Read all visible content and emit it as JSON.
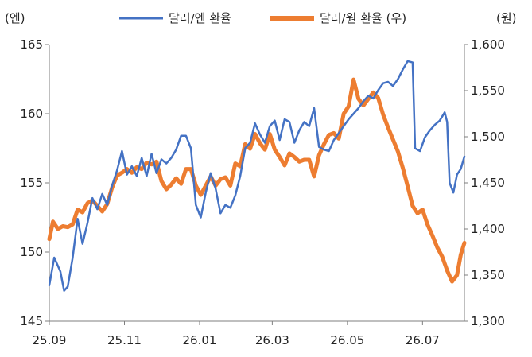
{
  "chart_data": {
    "type": "line",
    "x_ticks": [
      "25.09",
      "25.11",
      "26.01",
      "26.03",
      "26.05",
      "26.07"
    ],
    "left_axis": {
      "unit_label": "(엔)",
      "ylim": [
        145,
        165
      ],
      "ticks": [
        "145",
        "150",
        "155",
        "160",
        "165"
      ]
    },
    "right_axis": {
      "unit_label": "(원)",
      "ylim": [
        1300,
        1600
      ],
      "ticks": [
        "1,300",
        "1,350",
        "1,400",
        "1,450",
        "1,500",
        "1,550",
        "1,600"
      ]
    },
    "legend_position": "top-center",
    "series": [
      {
        "name": "달러/엔 환율",
        "axis": "left",
        "color": "#4472C4",
        "points": [
          [
            "25.09.01",
            147.6
          ],
          [
            "25.09.05",
            149.6
          ],
          [
            "25.09.10",
            148.6
          ],
          [
            "25.09.13",
            147.2
          ],
          [
            "25.09.16",
            147.5
          ],
          [
            "25.09.20",
            149.6
          ],
          [
            "25.09.24",
            152.4
          ],
          [
            "25.09.28",
            150.6
          ],
          [
            "25.10.02",
            152.1
          ],
          [
            "25.10.06",
            153.9
          ],
          [
            "25.10.10",
            153.1
          ],
          [
            "25.10.14",
            154.2
          ],
          [
            "25.10.18",
            153.4
          ],
          [
            "25.10.22",
            154.8
          ],
          [
            "25.10.26",
            155.9
          ],
          [
            "25.10.30",
            157.3
          ],
          [
            "25.11.03",
            155.6
          ],
          [
            "25.11.07",
            156.2
          ],
          [
            "25.11.11",
            155.5
          ],
          [
            "25.11.15",
            156.8
          ],
          [
            "25.11.19",
            155.5
          ],
          [
            "25.11.23",
            157.1
          ],
          [
            "25.11.27",
            155.7
          ],
          [
            "25.12.01",
            156.7
          ],
          [
            "25.12.05",
            156.4
          ],
          [
            "25.12.09",
            156.8
          ],
          [
            "25.12.13",
            157.4
          ],
          [
            "25.12.17",
            158.4
          ],
          [
            "25.12.21",
            158.4
          ],
          [
            "25.12.25",
            157.5
          ],
          [
            "25.12.29",
            153.4
          ],
          [
            "26.01.02",
            152.5
          ],
          [
            "26.01.06",
            154.3
          ],
          [
            "26.01.10",
            155.7
          ],
          [
            "26.01.14",
            154.6
          ],
          [
            "26.01.18",
            152.8
          ],
          [
            "26.01.22",
            153.4
          ],
          [
            "26.01.26",
            153.2
          ],
          [
            "26.01.30",
            154.1
          ],
          [
            "26.02.03",
            155.5
          ],
          [
            "26.02.07",
            157.5
          ],
          [
            "26.02.11",
            157.9
          ],
          [
            "26.02.15",
            159.3
          ],
          [
            "26.02.19",
            158.5
          ],
          [
            "26.02.23",
            157.9
          ],
          [
            "26.02.27",
            159.1
          ],
          [
            "26.03.03",
            159.5
          ],
          [
            "26.03.07",
            158.1
          ],
          [
            "26.03.11",
            159.6
          ],
          [
            "26.03.15",
            159.4
          ],
          [
            "26.03.19",
            157.9
          ],
          [
            "26.03.23",
            158.8
          ],
          [
            "26.03.27",
            159.4
          ],
          [
            "26.03.31",
            159.1
          ],
          [
            "26.04.04",
            160.4
          ],
          [
            "26.04.08",
            157.6
          ],
          [
            "26.04.12",
            157.4
          ],
          [
            "26.04.16",
            157.3
          ],
          [
            "26.04.20",
            158.1
          ],
          [
            "26.04.24",
            158.6
          ],
          [
            "26.04.28",
            159.1
          ],
          [
            "26.05.02",
            159.6
          ],
          [
            "26.05.06",
            160.0
          ],
          [
            "26.05.10",
            160.4
          ],
          [
            "26.05.14",
            160.9
          ],
          [
            "26.05.18",
            161.3
          ],
          [
            "26.05.22",
            161.1
          ],
          [
            "26.05.26",
            161.7
          ],
          [
            "26.05.30",
            162.2
          ],
          [
            "26.06.03",
            162.3
          ],
          [
            "26.06.07",
            162.0
          ],
          [
            "26.06.11",
            162.5
          ],
          [
            "26.06.15",
            163.2
          ],
          [
            "26.06.19",
            163.8
          ],
          [
            "26.06.23",
            163.7
          ],
          [
            "26.06.25",
            157.5
          ],
          [
            "26.06.29",
            157.3
          ],
          [
            "26.07.03",
            158.3
          ],
          [
            "26.07.07",
            158.8
          ],
          [
            "26.07.11",
            159.2
          ],
          [
            "26.07.15",
            159.5
          ],
          [
            "26.07.19",
            160.1
          ],
          [
            "26.07.21",
            159.4
          ],
          [
            "26.07.23",
            155.0
          ],
          [
            "26.07.26",
            154.3
          ],
          [
            "26.07.29",
            155.6
          ],
          [
            "26.08.01",
            156.0
          ],
          [
            "26.08.04",
            156.9
          ]
        ]
      },
      {
        "name": "달러/원 환율 (우)",
        "axis": "right",
        "color": "#ED7D31",
        "points": [
          [
            "25.09.01",
            1389
          ],
          [
            "25.09.04",
            1408
          ],
          [
            "25.09.08",
            1400
          ],
          [
            "25.09.12",
            1403
          ],
          [
            "25.09.16",
            1402
          ],
          [
            "25.09.20",
            1405
          ],
          [
            "25.09.24",
            1421
          ],
          [
            "25.09.28",
            1418
          ],
          [
            "25.10.02",
            1428
          ],
          [
            "25.10.06",
            1431
          ],
          [
            "25.10.10",
            1425
          ],
          [
            "25.10.14",
            1419
          ],
          [
            "25.10.18",
            1427
          ],
          [
            "25.10.22",
            1445
          ],
          [
            "25.10.26",
            1458
          ],
          [
            "25.10.30",
            1461
          ],
          [
            "25.11.03",
            1465
          ],
          [
            "25.11.07",
            1461
          ],
          [
            "25.11.11",
            1467
          ],
          [
            "25.11.15",
            1465
          ],
          [
            "25.11.19",
            1472
          ],
          [
            "25.11.23",
            1470
          ],
          [
            "25.11.27",
            1473
          ],
          [
            "25.12.01",
            1452
          ],
          [
            "25.12.05",
            1443
          ],
          [
            "25.12.09",
            1448
          ],
          [
            "25.12.13",
            1455
          ],
          [
            "25.12.17",
            1449
          ],
          [
            "25.12.21",
            1465
          ],
          [
            "25.12.25",
            1465
          ],
          [
            "25.12.29",
            1447
          ],
          [
            "26.01.02",
            1437
          ],
          [
            "26.01.06",
            1447
          ],
          [
            "26.01.10",
            1457
          ],
          [
            "26.01.14",
            1447
          ],
          [
            "26.01.18",
            1454
          ],
          [
            "26.01.22",
            1456
          ],
          [
            "26.01.26",
            1447
          ],
          [
            "26.01.30",
            1471
          ],
          [
            "26.02.03",
            1468
          ],
          [
            "26.02.07",
            1492
          ],
          [
            "26.02.11",
            1487
          ],
          [
            "26.02.15",
            1503
          ],
          [
            "26.02.19",
            1493
          ],
          [
            "26.02.23",
            1486
          ],
          [
            "26.02.27",
            1503
          ],
          [
            "26.03.03",
            1486
          ],
          [
            "26.03.07",
            1478
          ],
          [
            "26.03.11",
            1469
          ],
          [
            "26.03.15",
            1482
          ],
          [
            "26.03.19",
            1478
          ],
          [
            "26.03.23",
            1473
          ],
          [
            "26.03.27",
            1475
          ],
          [
            "26.03.31",
            1475
          ],
          [
            "26.04.04",
            1457
          ],
          [
            "26.04.08",
            1480
          ],
          [
            "26.04.12",
            1492
          ],
          [
            "26.04.16",
            1502
          ],
          [
            "26.04.20",
            1504
          ],
          [
            "26.04.24",
            1498
          ],
          [
            "26.04.28",
            1525
          ],
          [
            "26.05.02",
            1533
          ],
          [
            "26.05.06",
            1562
          ],
          [
            "26.05.10",
            1541
          ],
          [
            "26.05.14",
            1534
          ],
          [
            "26.05.18",
            1541
          ],
          [
            "26.05.22",
            1548
          ],
          [
            "26.05.26",
            1542
          ],
          [
            "26.05.30",
            1524
          ],
          [
            "26.06.03",
            1510
          ],
          [
            "26.06.07",
            1497
          ],
          [
            "26.06.11",
            1484
          ],
          [
            "26.06.15",
            1466
          ],
          [
            "26.06.19",
            1446
          ],
          [
            "26.06.23",
            1425
          ],
          [
            "26.06.27",
            1417
          ],
          [
            "26.07.01",
            1421
          ],
          [
            "26.07.05",
            1405
          ],
          [
            "26.07.09",
            1393
          ],
          [
            "26.07.13",
            1380
          ],
          [
            "26.07.17",
            1370
          ],
          [
            "26.07.21",
            1355
          ],
          [
            "26.07.25",
            1343
          ],
          [
            "26.07.29",
            1350
          ],
          [
            "26.08.01",
            1372
          ],
          [
            "26.08.04",
            1385
          ]
        ]
      }
    ]
  }
}
